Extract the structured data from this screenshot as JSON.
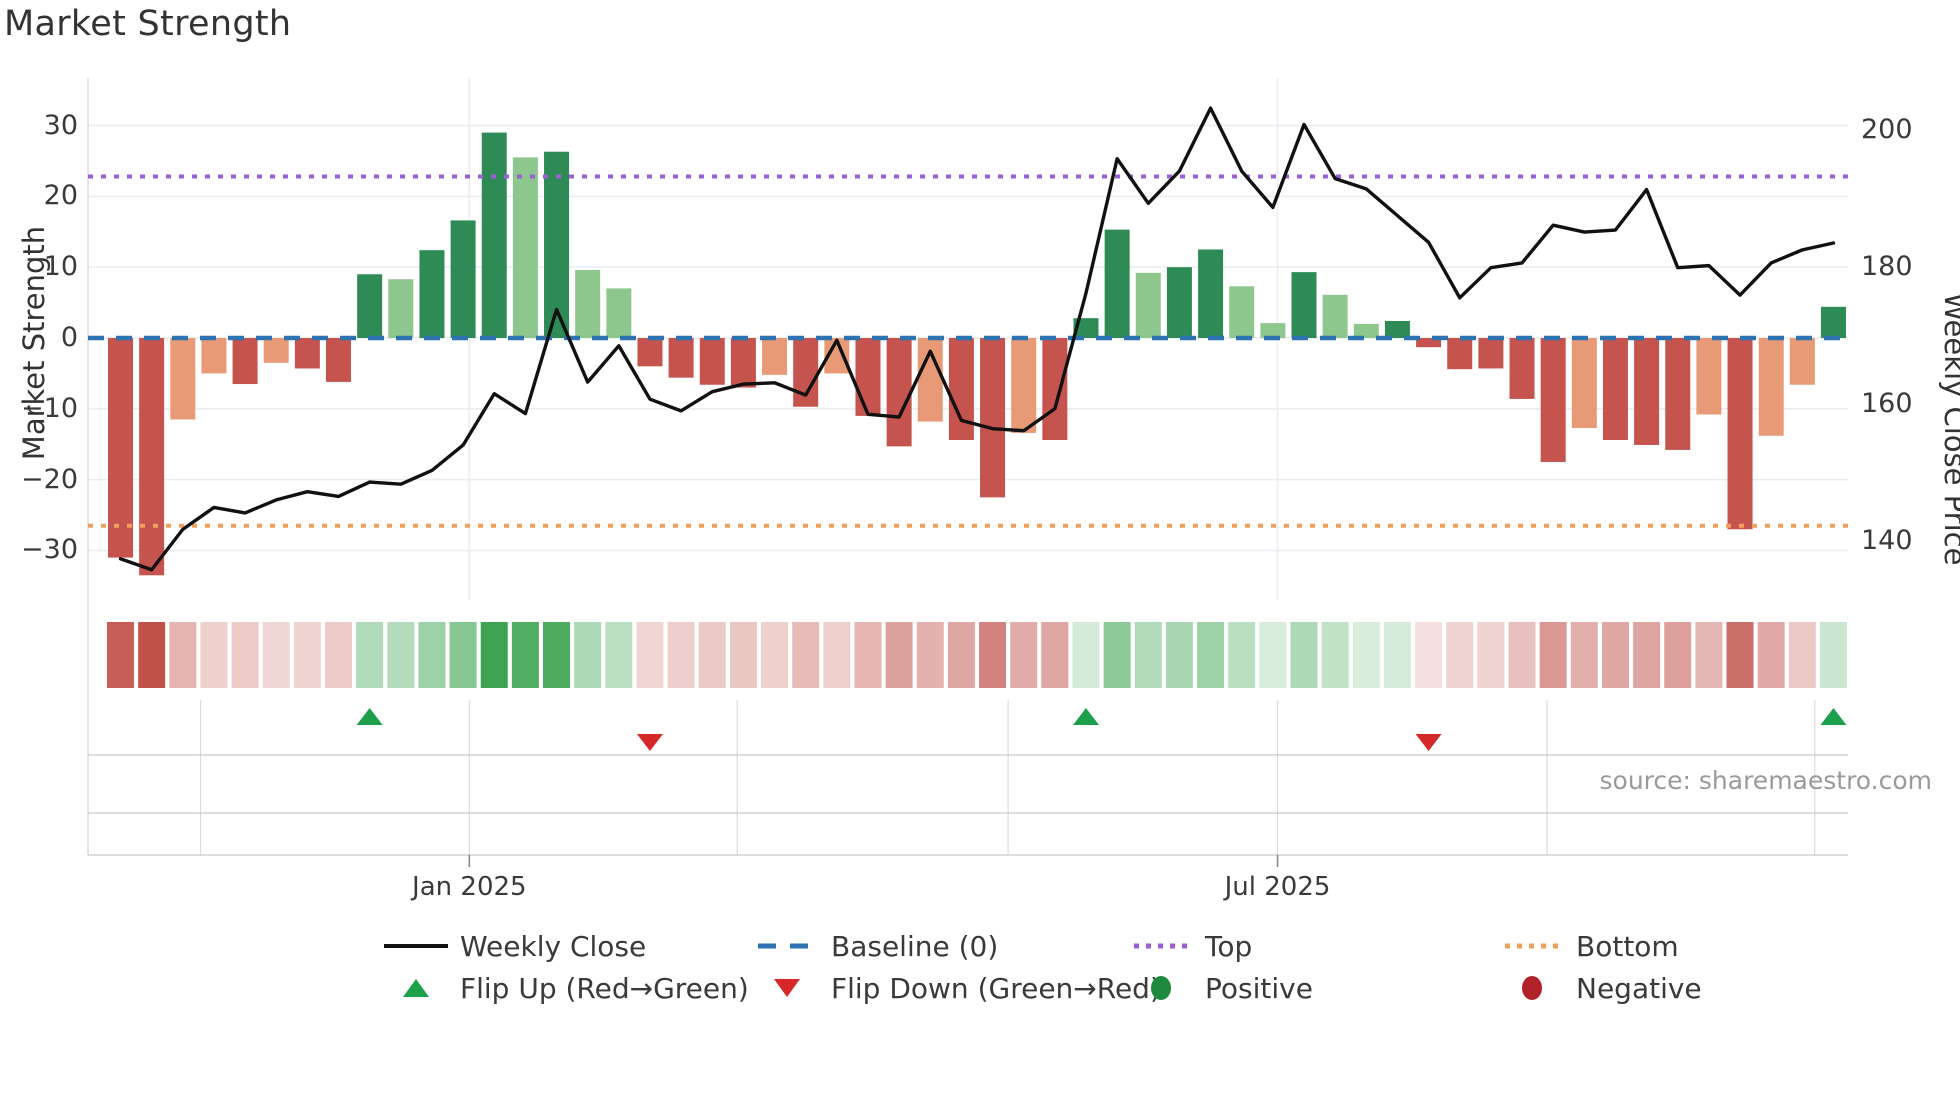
{
  "title": "Market Strength",
  "source": "source: sharemaestro.com",
  "axes": {
    "left_title": "Market Strength",
    "right_title": "Weekly Close Price",
    "left_ticks": [
      30,
      20,
      10,
      0,
      -10,
      -20,
      -30
    ],
    "right_ticks": [
      200,
      180,
      160,
      140
    ],
    "x_ticks": [
      {
        "label": "Jan 2025",
        "week_pos": 12.2
      },
      {
        "label": "Jul 2025",
        "week_pos": 38.15
      }
    ],
    "minor_week_ticks": [
      3.57,
      12.2,
      20.8,
      29.5,
      38.15,
      46.8,
      55.4
    ]
  },
  "legend": {
    "items": [
      {
        "label": "Weekly Close",
        "symbol": "line"
      },
      {
        "label": "Baseline (0)",
        "symbol": "dashed-line"
      },
      {
        "label": "Top",
        "symbol": "dotted-line"
      },
      {
        "label": "Bottom",
        "symbol": "dotted-line"
      },
      {
        "label": "Flip Up (Red→Green)",
        "symbol": "triangle-up"
      },
      {
        "label": "Flip Down (Green→Red)",
        "symbol": "triangle-down"
      },
      {
        "label": "Positive",
        "symbol": "circle"
      },
      {
        "label": "Negative",
        "symbol": "circle"
      }
    ]
  },
  "colors": {
    "bar_pos_strong": "#2f8b56",
    "bar_pos_soft": "#8ec78d",
    "bar_neg_strong": "#c5534e",
    "bar_neg_soft": "#e89a76",
    "line": "#111111",
    "baseline": "#2d73b2",
    "top": "#9c5fd6",
    "bottom": "#f0a05a",
    "flip_up": "#1ca04c",
    "flip_down": "#d62828",
    "positive": "#1f8a3d",
    "negative": "#b02128",
    "strip_red_base": "#c05048",
    "strip_green_base": "#3ea452",
    "grid": "#eaecf1",
    "spine": "#d9dce1",
    "hairline": "#c9c9c9"
  },
  "chart_data": {
    "type": "composite",
    "x": "weeks 1-56 (Oct 2024 – Nov 2025, weekly)",
    "x_tick_labels": [
      "Jan 2025",
      "Jul 2025"
    ],
    "ylim_left": [
      -35,
      33
    ],
    "ylim_right": [
      133,
      207
    ],
    "baseline": 0,
    "top_line": 22.8,
    "bottom_line": -26.5,
    "grid": "horizontal only, light gray",
    "legend_position": "bottom, two rows",
    "series": [
      {
        "name": "Market Strength",
        "type": "bar",
        "axis": "left",
        "values": [
          -31,
          -33.5,
          -11.5,
          -5,
          -6.5,
          -3.5,
          -4.3,
          -6.2,
          9,
          8.3,
          12.4,
          16.6,
          29,
          25.5,
          26.3,
          9.6,
          7,
          -4,
          -5.6,
          -6.6,
          -7,
          -5.2,
          -9.7,
          -5,
          -11,
          -15.3,
          -11.8,
          -14.4,
          -22.5,
          -13.4,
          -14.4,
          2.8,
          15.3,
          9.2,
          10,
          12.5,
          7.3,
          2.1,
          9.3,
          6.1,
          2,
          2.4,
          -1.3,
          -4.4,
          -4.3,
          -8.6,
          -17.5,
          -12.7,
          -14.4,
          -15.1,
          -15.8,
          -10.8,
          -27,
          -13.8,
          -6.6,
          4.4
        ],
        "tone": [
          "s",
          "s",
          "w",
          "w",
          "s",
          "w",
          "s",
          "s",
          "s",
          "w",
          "s",
          "s",
          "s",
          "w",
          "s",
          "w",
          "w",
          "s",
          "s",
          "s",
          "s",
          "w",
          "s",
          "w",
          "s",
          "s",
          "w",
          "s",
          "s",
          "w",
          "s",
          "s",
          "s",
          "w",
          "s",
          "s",
          "w",
          "w",
          "s",
          "w",
          "w",
          "s",
          "s",
          "s",
          "s",
          "s",
          "s",
          "w",
          "s",
          "s",
          "s",
          "w",
          "s",
          "w",
          "w",
          "s"
        ]
      },
      {
        "name": "Weekly Close",
        "type": "line",
        "axis": "right",
        "values": [
          137.4,
          135.8,
          141.7,
          144.9,
          144.1,
          146,
          147.2,
          146.5,
          148.6,
          148.3,
          150.3,
          154,
          161.5,
          158.6,
          173.8,
          163.2,
          168.5,
          160.7,
          159,
          161.8,
          162.9,
          163.1,
          161.3,
          169.3,
          158.5,
          158.1,
          167.7,
          157.6,
          156.4,
          156.1,
          159.3,
          176.2,
          195.8,
          189.3,
          194,
          203.2,
          194,
          188.7,
          200.8,
          192.9,
          191.4,
          187.5,
          183.6,
          175.5,
          179.9,
          180.6,
          186.1,
          185.1,
          185.4,
          191.3,
          179.9,
          180.2,
          175.9,
          180.6,
          182.5,
          183.5
        ]
      },
      {
        "name": "Strength heatmap strip",
        "type": "heatmap",
        "note": "one cell per week; red/green hue follows bar sign, opacity follows magnitude"
      }
    ],
    "flip_up_weeks": [
      9,
      32,
      56
    ],
    "flip_down_weeks": [
      18,
      43
    ]
  }
}
